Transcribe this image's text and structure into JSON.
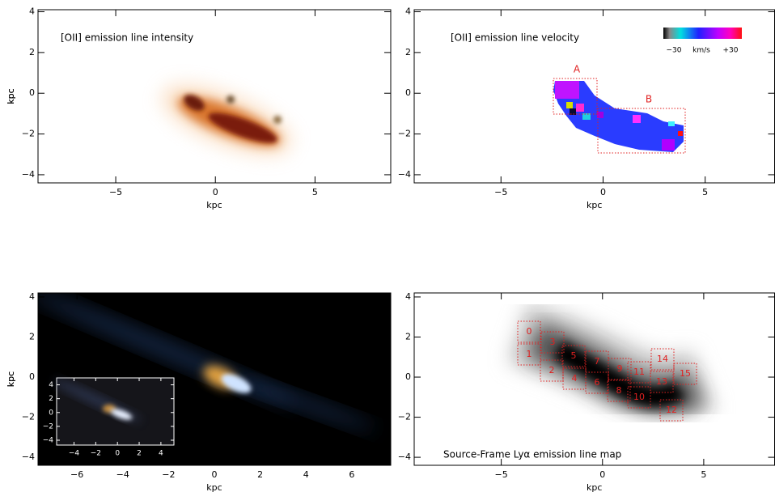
{
  "chart_data": [
    {
      "type": "image",
      "title": "[OII] emission line intensity",
      "xlabel": "kpc",
      "ylabel": "kpc",
      "xlim": [
        -8.9,
        8.8
      ],
      "ylim": [
        -4.4,
        4.1
      ],
      "xticks": [
        {
          "value": -5,
          "label": "−5"
        },
        0,
        5
      ],
      "yticks": [
        {
          "value": -4,
          "label": "−4"
        },
        {
          "value": -2,
          "label": "−2"
        },
        0,
        2,
        4
      ]
    },
    {
      "type": "image",
      "title": "[OII] emission line velocity",
      "xlabel": "kpc",
      "ylabel": "kpc",
      "xlim": [
        -9.25,
        8.4
      ],
      "ylim": [
        -4.4,
        4.1
      ],
      "xticks": [
        {
          "value": -5,
          "label": "−5"
        },
        0,
        5
      ],
      "yticks": [
        {
          "value": -4,
          "label": "−4"
        },
        {
          "value": -2,
          "label": "−2"
        },
        0,
        2,
        4
      ],
      "colorbar_labels": [
        "−30",
        "km/s",
        "+30"
      ],
      "annotations": [
        "A",
        "B"
      ]
    },
    {
      "type": "image",
      "xlabel": "kpc",
      "ylabel": "kpc",
      "xlim": [
        -7.7,
        7.7
      ],
      "ylim": [
        -4.4,
        4.2
      ],
      "xticks": [
        {
          "value": -6,
          "label": "−6"
        },
        {
          "value": -4,
          "label": "−4"
        },
        {
          "value": -2,
          "label": "−2"
        },
        0,
        2,
        4,
        6
      ],
      "yticks": [
        {
          "value": -4,
          "label": "−4"
        },
        {
          "value": -2,
          "label": "−2"
        },
        0,
        2,
        4
      ],
      "inset": {
        "xlim": [
          -5.6,
          5.2
        ],
        "ylim": [
          -4.7,
          5.0
        ],
        "xticks": [
          {
            "value": -4,
            "label": "−4"
          },
          {
            "value": -2,
            "label": "−2"
          },
          0,
          2,
          4
        ],
        "yticks": [
          {
            "value": -4,
            "label": "−4"
          },
          {
            "value": -2,
            "label": "−2"
          },
          0,
          2,
          4
        ]
      }
    },
    {
      "type": "image",
      "title": "Source-Frame Lyα emission line map",
      "xlabel": "kpc",
      "ylabel": "kpc",
      "xlim": [
        -9.3,
        8.5
      ],
      "ylim": [
        -4.4,
        4.2
      ],
      "xticks": [
        {
          "value": -5,
          "label": "−5"
        },
        0,
        5
      ],
      "yticks": [
        {
          "value": -4,
          "label": "−4"
        },
        {
          "value": -2,
          "label": "−2"
        },
        0,
        2,
        4
      ],
      "annotations": [
        "0",
        "3",
        "1",
        "5",
        "2",
        "4",
        "7",
        "6",
        "9",
        "8",
        "11",
        "10",
        "14",
        "13",
        "15",
        "12"
      ]
    }
  ]
}
